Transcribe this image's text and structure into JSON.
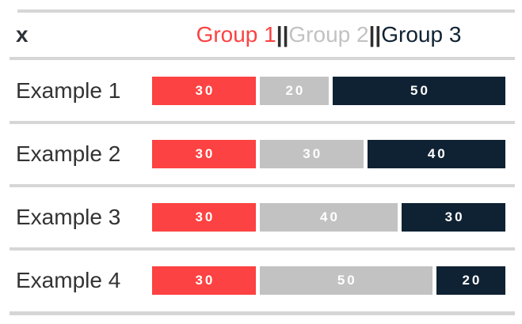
{
  "chart_data": {
    "type": "bar",
    "orientation": "horizontal",
    "stacked": true,
    "axis_label": "x",
    "categories": [
      "Example 1",
      "Example 2",
      "Example 3",
      "Example 4"
    ],
    "series": [
      {
        "name": "Group 1",
        "color": "#FC4242",
        "values": [
          30,
          30,
          30,
          30
        ]
      },
      {
        "name": "Group 2",
        "color": "#C2C2C2",
        "values": [
          20,
          30,
          40,
          50
        ]
      },
      {
        "name": "Group 3",
        "color": "#0F2233",
        "values": [
          50,
          40,
          30,
          20
        ]
      }
    ],
    "legend": {
      "position": "top",
      "separator": "||",
      "separator_color": "#2E2E2E"
    },
    "xlim": [
      0,
      100
    ],
    "grid": false,
    "value_labels_shown": true,
    "value_label_color": "#FFFFFF",
    "row_label_color": "#333333",
    "rule_color": "#D6D6D6",
    "background": "#FFFFFF"
  }
}
